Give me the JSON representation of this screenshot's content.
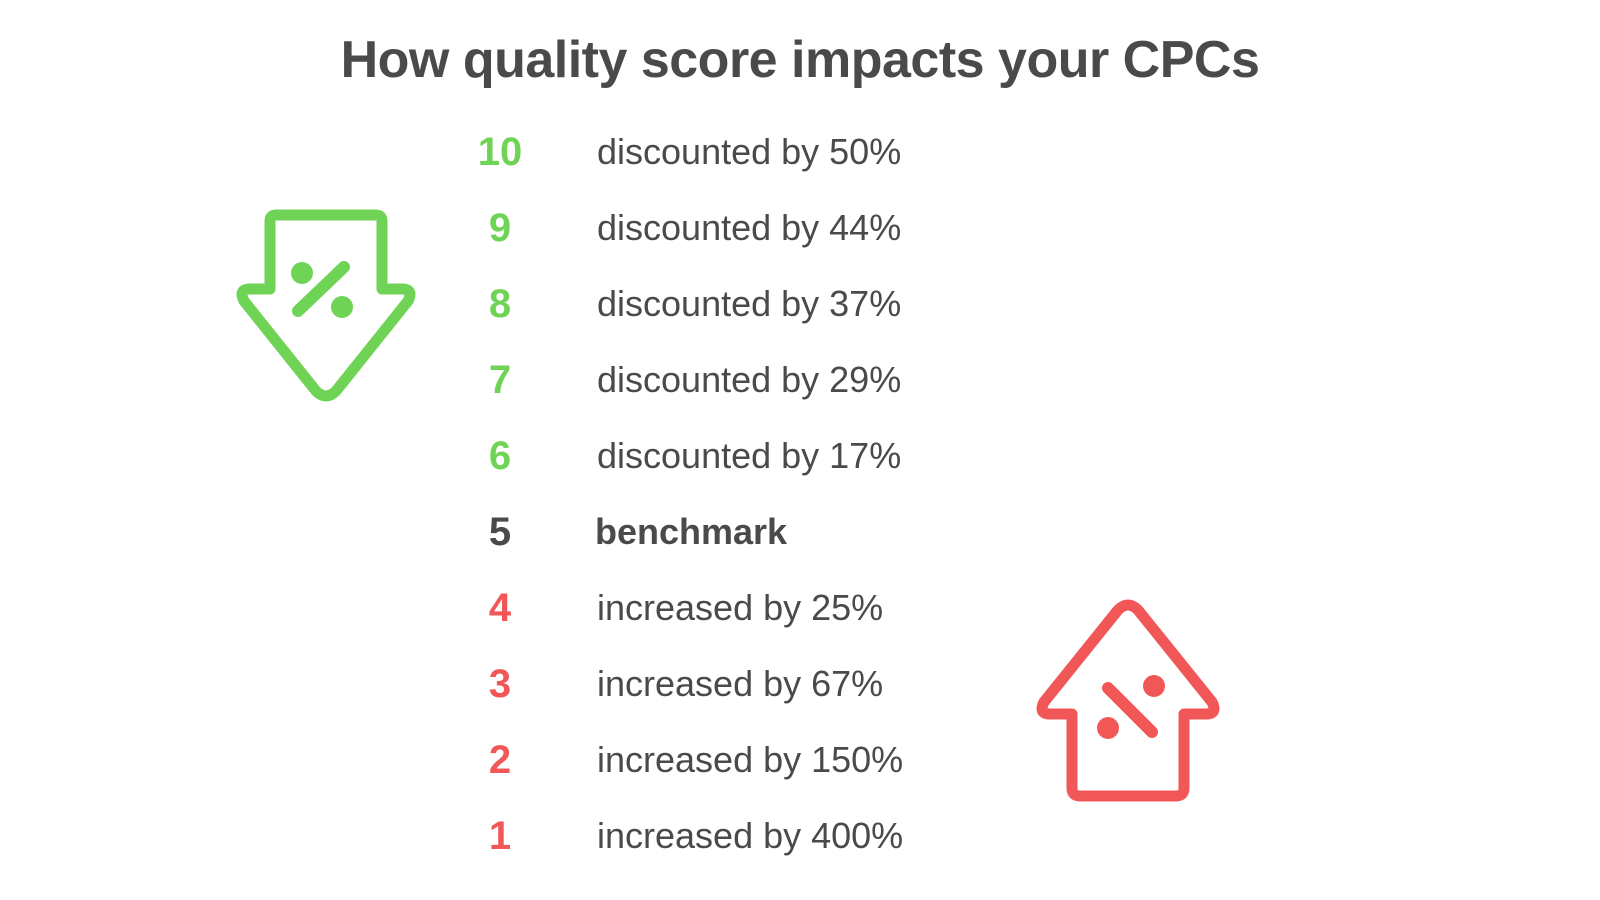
{
  "title": "How quality score impacts your CPCs",
  "colors": {
    "positive": "#6fd455",
    "neutral": "#4a4a4a",
    "negative": "#f25757",
    "text": "#4a4a4a"
  },
  "icons": {
    "discount": "percent-down-arrow-icon",
    "increase": "percent-up-arrow-icon"
  },
  "rows": [
    {
      "score": "10",
      "effect": "discounted by 50%",
      "tone": "positive"
    },
    {
      "score": "9",
      "effect": "discounted by 44%",
      "tone": "positive"
    },
    {
      "score": "8",
      "effect": "discounted by 37%",
      "tone": "positive"
    },
    {
      "score": "7",
      "effect": "discounted by 29%",
      "tone": "positive"
    },
    {
      "score": "6",
      "effect": "discounted by 17%",
      "tone": "positive"
    },
    {
      "score": "5",
      "effect": "benchmark",
      "tone": "neutral"
    },
    {
      "score": "4",
      "effect": "increased by 25%",
      "tone": "negative"
    },
    {
      "score": "3",
      "effect": "increased by 67%",
      "tone": "negative"
    },
    {
      "score": "2",
      "effect": "increased by 150%",
      "tone": "negative"
    },
    {
      "score": "1",
      "effect": "increased by 400%",
      "tone": "negative"
    }
  ]
}
